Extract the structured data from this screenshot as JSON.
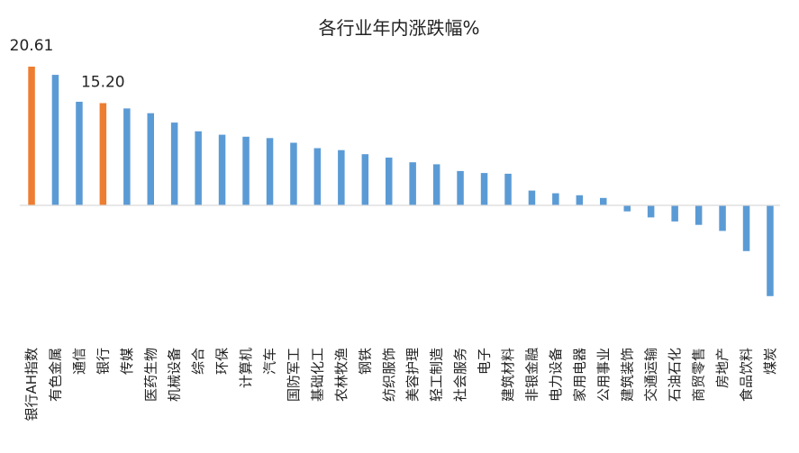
{
  "chart_data": {
    "type": "bar",
    "title": "各行业年内涨跌幅%",
    "categories": [
      "银行AH指数",
      "有色金属",
      "通信",
      "银行",
      "传媒",
      "医药生物",
      "机械设备",
      "综合",
      "环保",
      "计算机",
      "汽车",
      "国防军工",
      "基础化工",
      "农林牧渔",
      "钢铁",
      "纺织服饰",
      "美容护理",
      "轻工制造",
      "社会服务",
      "电子",
      "建筑材料",
      "非银金融",
      "电力设备",
      "家用电器",
      "公用事业",
      "建筑装饰",
      "交通运输",
      "石油石化",
      "商贸零售",
      "房地产",
      "食品饮料",
      "煤炭"
    ],
    "values": [
      20.61,
      19.4,
      15.4,
      15.2,
      14.4,
      13.7,
      12.3,
      11.0,
      10.5,
      10.2,
      10.0,
      9.3,
      8.5,
      8.2,
      7.6,
      7.1,
      6.4,
      6.1,
      5.1,
      4.8,
      4.7,
      2.2,
      1.8,
      1.5,
      1.1,
      -0.9,
      -1.8,
      -2.4,
      -2.9,
      -3.8,
      -6.8,
      -13.5
    ],
    "highlight": [
      "银行AH指数",
      "银行"
    ],
    "data_labels": [
      {
        "category": "银行AH指数",
        "text": "20.61"
      },
      {
        "category": "银行",
        "text": "15.20"
      }
    ],
    "ylim": [
      -16,
      23
    ],
    "grid": false,
    "colors": {
      "default": "#5b9bd5",
      "highlight": "#ed7d31",
      "axis": "#d9d9d9"
    }
  }
}
